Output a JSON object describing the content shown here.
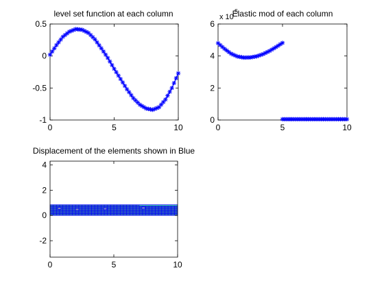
{
  "chart_data": [
    {
      "type": "line",
      "title": "level set function at each column",
      "xlim": [
        0,
        10
      ],
      "ylim": [
        -1,
        0.5
      ],
      "xticks": [
        "0",
        "5",
        "10"
      ],
      "yticks": [
        "-1",
        "-0.5",
        "0",
        "0.5"
      ],
      "marker": "asterisk",
      "series_color": "#0000ff",
      "x": [
        0.0,
        0.5,
        1.0,
        1.5,
        2.0,
        2.5,
        3.0,
        3.5,
        4.0,
        4.5,
        5.0,
        5.5,
        6.0,
        6.5,
        7.0,
        7.5,
        8.0,
        8.5,
        9.0,
        9.5,
        10.0
      ],
      "y": [
        0.02,
        0.17,
        0.3,
        0.38,
        0.42,
        0.41,
        0.36,
        0.26,
        0.12,
        -0.03,
        -0.2,
        -0.36,
        -0.52,
        -0.66,
        -0.76,
        -0.82,
        -0.84,
        -0.8,
        -0.68,
        -0.5,
        -0.27
      ]
    },
    {
      "type": "line",
      "title": "Elastic mod of each column",
      "exponent_label": "x 10",
      "exponent_power": "5",
      "xlim": [
        0,
        10
      ],
      "ylim": [
        0,
        6
      ],
      "xticks": [
        "0",
        "5",
        "10"
      ],
      "yticks": [
        "0",
        "2",
        "4",
        "6"
      ],
      "marker": "asterisk",
      "series_color": "#0000ff",
      "x": [
        0.0,
        0.5,
        1.0,
        1.5,
        2.0,
        2.5,
        3.0,
        3.5,
        4.0,
        4.5,
        5.0,
        5.0,
        5.5,
        6.0,
        6.5,
        7.0,
        7.5,
        8.0,
        8.5,
        9.0,
        9.5,
        10.0
      ],
      "y": [
        4.8,
        4.45,
        4.15,
        3.97,
        3.9,
        3.91,
        3.98,
        4.12,
        4.32,
        4.56,
        4.82,
        0.05,
        0.05,
        0.05,
        0.05,
        0.05,
        0.05,
        0.05,
        0.05,
        0.05,
        0.05,
        0.05
      ]
    },
    {
      "type": "heatmap",
      "title": "Displacement of the elements shown in Blue",
      "xlim": [
        0,
        10
      ],
      "ylim": [
        -3.3,
        4.3
      ],
      "xticks": [
        "0",
        "5",
        "10"
      ],
      "yticks": [
        "-2",
        "0",
        "2",
        "4"
      ],
      "element_color": "#0000ff",
      "mesh_x_range": [
        0,
        10
      ],
      "mesh_y_range": [
        0,
        0.85
      ]
    }
  ]
}
